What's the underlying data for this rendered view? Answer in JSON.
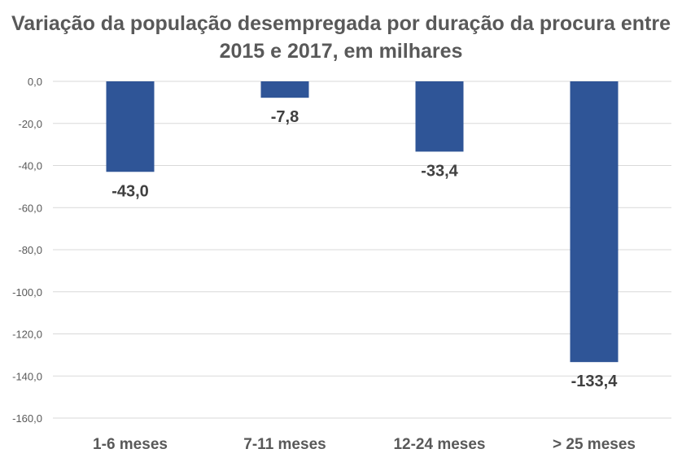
{
  "chart_data": {
    "type": "bar",
    "title": "Variação da população desempregada por duração da procura entre 2015 e 2017, em milhares",
    "categories": [
      "1-6 meses",
      "7-11 meses",
      "12-24 meses",
      "> 25 meses"
    ],
    "values": [
      -43.0,
      -7.8,
      -33.4,
      -133.4
    ],
    "data_labels": [
      "-43,0",
      "-7,8",
      "-33,4",
      "-133,4"
    ],
    "ylim": [
      -160,
      0
    ],
    "yticks": [
      0,
      -20,
      -40,
      -60,
      -80,
      -100,
      -120,
      -140,
      -160
    ],
    "ytick_labels": [
      "0,0",
      "-20,0",
      "-40,0",
      "-60,0",
      "-80,0",
      "-100,0",
      "-120,0",
      "-140,0",
      "-160,0"
    ],
    "grid": true,
    "legend": "none",
    "bar_color": "#2F5597",
    "xlabel": "",
    "ylabel": ""
  }
}
